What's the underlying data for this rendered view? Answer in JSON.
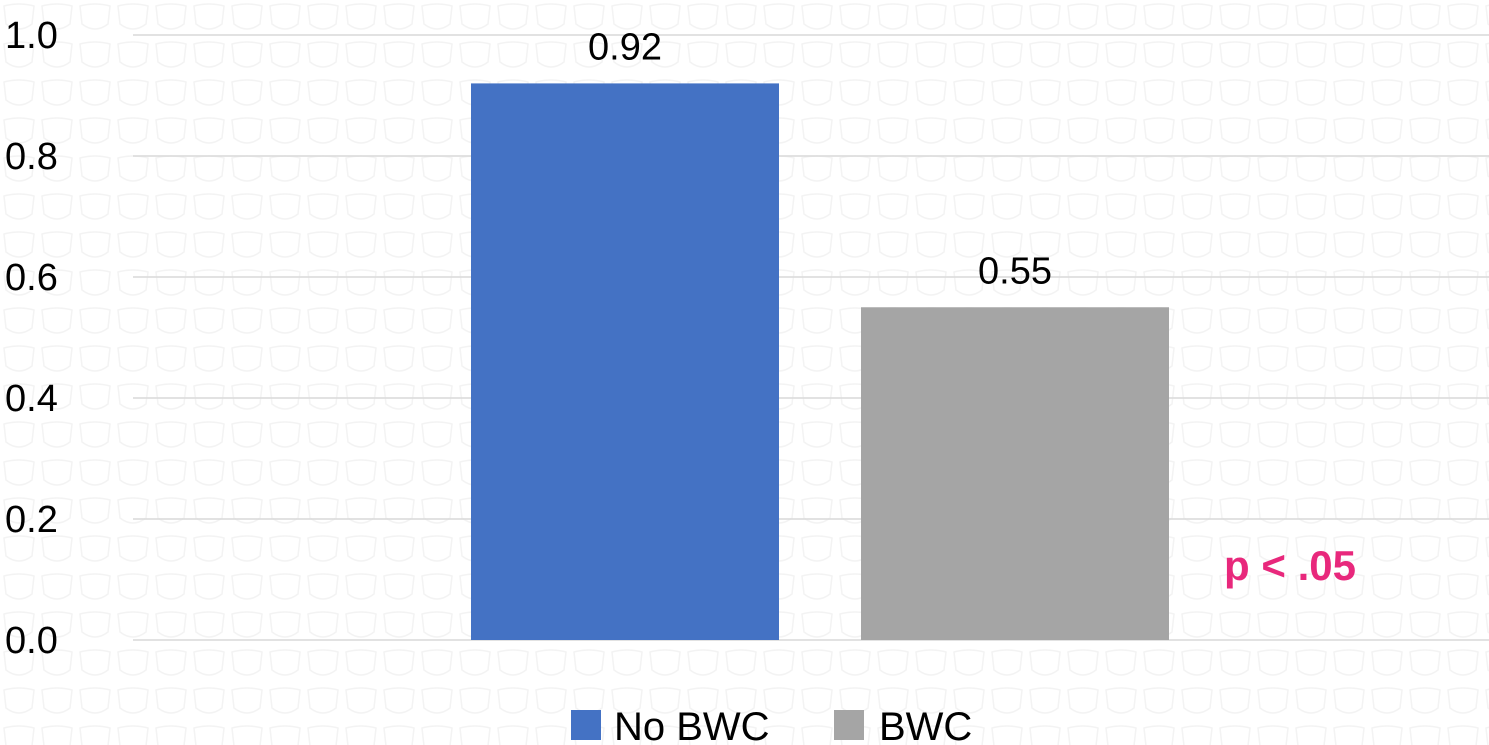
{
  "chart_data": {
    "type": "bar",
    "categories": [
      "No BWC",
      "BWC"
    ],
    "series": [
      {
        "name": "No BWC",
        "value": 0.92,
        "value_label": "0.92",
        "color": "#4472c4"
      },
      {
        "name": "BWC",
        "value": 0.55,
        "value_label": "0.55",
        "color": "#a5a5a5"
      }
    ],
    "ylim": [
      0,
      1.0
    ],
    "yticks": [
      {
        "value": 0.0,
        "label": "0.0"
      },
      {
        "value": 0.2,
        "label": "0.2"
      },
      {
        "value": 0.4,
        "label": "0.4"
      },
      {
        "value": 0.6,
        "label": "0.6"
      },
      {
        "value": 0.8,
        "label": "0.8"
      },
      {
        "value": 1.0,
        "label": "1.0"
      }
    ],
    "grid": true,
    "legend_position": "bottom",
    "annotation": {
      "text": "p < .05",
      "color": "#e8287c"
    },
    "title": "",
    "xlabel": "",
    "ylabel": ""
  }
}
